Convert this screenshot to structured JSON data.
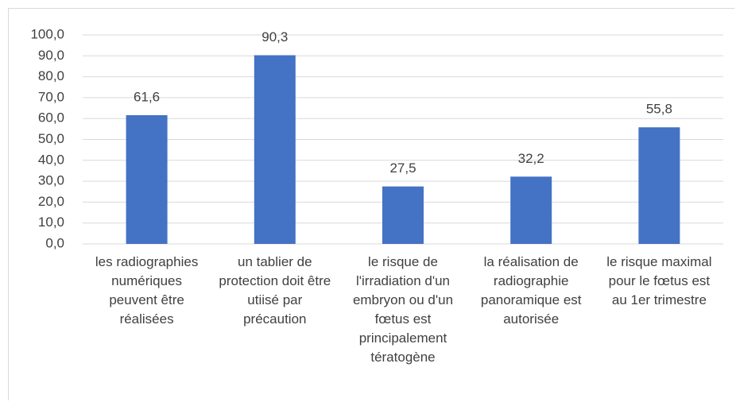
{
  "chart_data": {
    "type": "bar",
    "categories": [
      "les radiographies numériques peuvent être réalisées",
      "un tablier de protection doit être utiisé par précaution",
      "le risque de l'irradiation d'un embryon ou d'un fœtus est principalement tératogène",
      "la réalisation de radiographie panoramique est autorisée",
      "le risque maximal pour le fœtus est au 1er trimestre"
    ],
    "values": [
      61.6,
      90.3,
      27.5,
      32.2,
      55.8
    ],
    "value_labels": [
      "61,6",
      "90,3",
      "27,5",
      "32,2",
      "55,8"
    ],
    "color": "#4472c4",
    "ylim": [
      0,
      100
    ],
    "yticks": [
      {
        "value": 0,
        "label": "0,0"
      },
      {
        "value": 10,
        "label": "10,0"
      },
      {
        "value": 20,
        "label": "20,0"
      },
      {
        "value": 30,
        "label": "30,0"
      },
      {
        "value": 40,
        "label": "40,0"
      },
      {
        "value": 50,
        "label": "50,0"
      },
      {
        "value": 60,
        "label": "60,0"
      },
      {
        "value": 70,
        "label": "70,0"
      },
      {
        "value": 80,
        "label": "80,0"
      },
      {
        "value": 90,
        "label": "90,0"
      },
      {
        "value": 100,
        "label": "100,0"
      }
    ],
    "grid": true
  }
}
